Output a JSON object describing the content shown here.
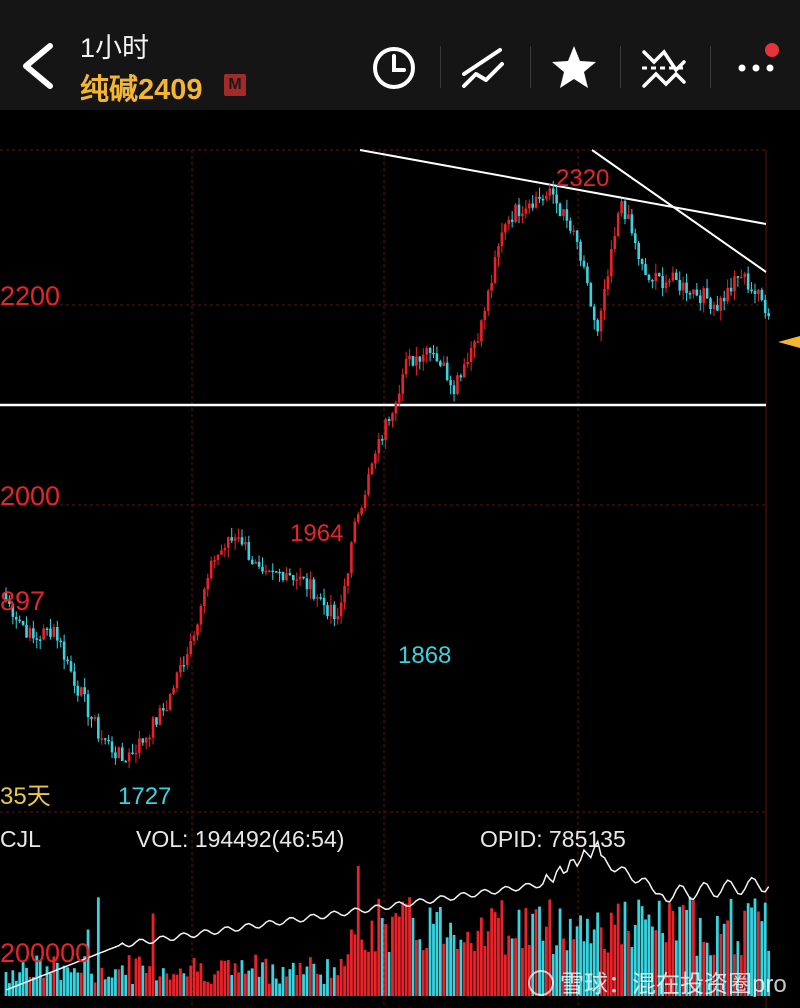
{
  "header": {
    "period": "1小时",
    "symbol": "纯碱2409",
    "badge": "M",
    "icons": [
      "back-icon",
      "clock-icon",
      "draw-lines-icon",
      "star-icon",
      "indicator-icon",
      "more-icon"
    ]
  },
  "colors": {
    "up": "#e8232a",
    "down": "#37d4e0",
    "grid": "#5a1416",
    "trend": "#ffffff",
    "header_bg": "#151515",
    "symbol": "#f3b534",
    "price_tag": "#f3b534"
  },
  "chart_data": {
    "type": "candlestick",
    "y_axis_labels": [
      "2200",
      "2000",
      "897"
    ],
    "ylim": [
      1700,
      2345
    ],
    "annotations": [
      {
        "label": "2320",
        "value": 2320,
        "color": "up"
      },
      {
        "label": "1964",
        "value": 1964,
        "color": "up"
      },
      {
        "label": "1868",
        "value": 1868,
        "color": "down"
      },
      {
        "label": "1727",
        "value": 1727,
        "color": "down"
      }
    ],
    "horizontal_line": 2090,
    "days_label": "35天",
    "anchors": [
      [
        0,
        1895
      ],
      [
        8,
        1855
      ],
      [
        14,
        1868
      ],
      [
        20,
        1815
      ],
      [
        27,
        1762
      ],
      [
        34,
        1735
      ],
      [
        40,
        1755
      ],
      [
        47,
        1790
      ],
      [
        54,
        1855
      ],
      [
        61,
        1938
      ],
      [
        68,
        1962
      ],
      [
        75,
        1915
      ],
      [
        82,
        1925
      ],
      [
        90,
        1905
      ],
      [
        97,
        1872
      ],
      [
        103,
        1985
      ],
      [
        110,
        2060
      ],
      [
        117,
        2130
      ],
      [
        124,
        2150
      ],
      [
        131,
        2110
      ],
      [
        139,
        2170
      ],
      [
        146,
        2275
      ],
      [
        153,
        2295
      ],
      [
        160,
        2300
      ],
      [
        167,
        2250
      ],
      [
        173,
        2160
      ],
      [
        180,
        2295
      ],
      [
        187,
        2215
      ],
      [
        194,
        2215
      ],
      [
        201,
        2205
      ],
      [
        208,
        2190
      ],
      [
        215,
        2220
      ],
      [
        223,
        2185
      ]
    ],
    "volume_label": "VOL: 194492(46:54)",
    "opid_label": "OPID: 785135",
    "indicator_name": "CJL",
    "volume_axis_label": "200000"
  },
  "watermark": "雪球：混在投资圈pro"
}
